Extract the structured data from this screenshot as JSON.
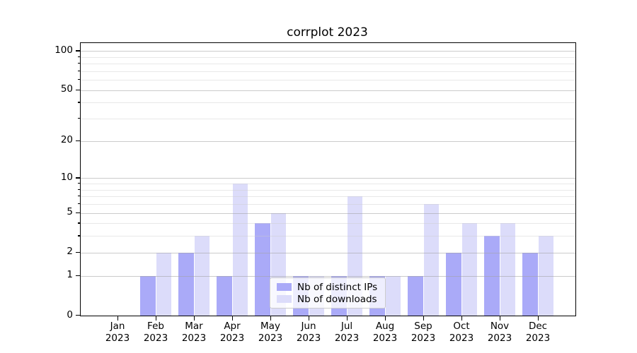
{
  "chart_data": {
    "type": "bar",
    "title": "corrplot 2023",
    "categories": [
      "Jan 2023",
      "Feb 2023",
      "Mar 2023",
      "Apr 2023",
      "May 2023",
      "Jun 2023",
      "Jul 2023",
      "Aug 2023",
      "Sep 2023",
      "Oct 2023",
      "Nov 2023",
      "Dec 2023"
    ],
    "series": [
      {
        "name": "Nb of distinct IPs",
        "color": "#aaaaf8",
        "values": [
          0,
          1,
          2,
          1,
          4,
          1,
          1,
          1,
          1,
          2,
          3,
          2
        ]
      },
      {
        "name": "Nb of downloads",
        "color": "#dcdcfa",
        "values": [
          0,
          2,
          3,
          9,
          5,
          1,
          7,
          1,
          6,
          4,
          4,
          3
        ]
      }
    ],
    "xlabel": "",
    "ylabel": "",
    "y_axis": {
      "scale": "log1p",
      "ticks": [
        0,
        1,
        2,
        5,
        10,
        20,
        50,
        100
      ],
      "minor_ticks": [
        3,
        4,
        6,
        7,
        8,
        9,
        30,
        40,
        60,
        70,
        80,
        90
      ],
      "ylim": [
        0,
        115
      ]
    },
    "grid": "on",
    "legend_position": "lower center"
  },
  "colors": {
    "grid_major": "rgba(160,160,160,0.55)",
    "grid_minor": "rgba(205,205,205,0.45)",
    "spine": "#000000",
    "legend_border": "#cccccc",
    "legend_bg": "rgba(255,255,255,0.8)"
  }
}
